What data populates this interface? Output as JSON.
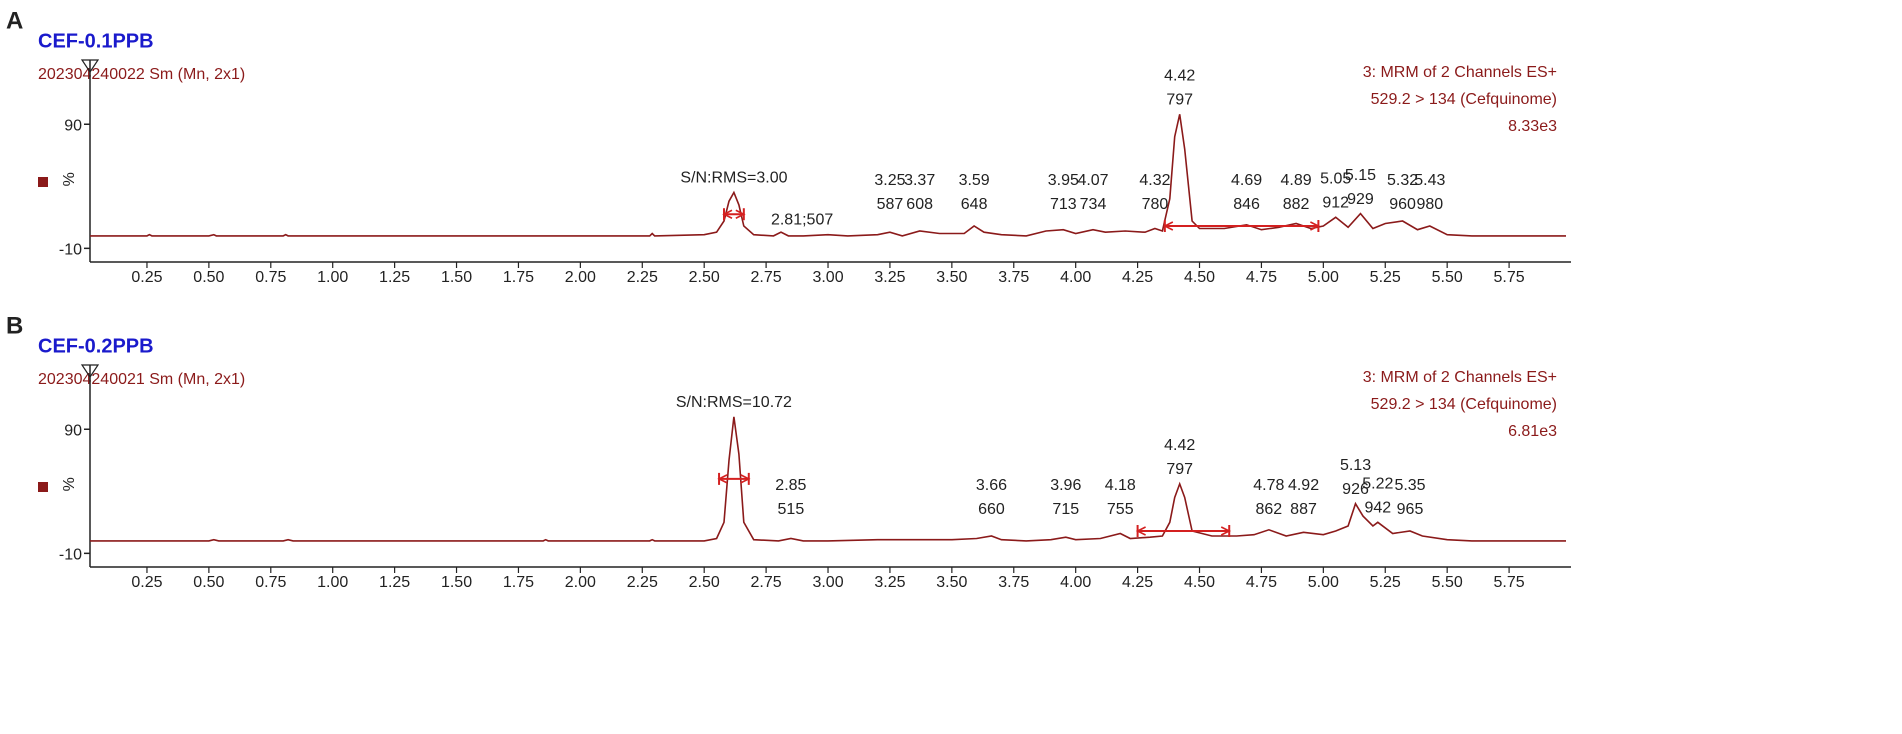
{
  "chart_data": [
    {
      "type": "line",
      "panel": "A",
      "title": "CEF-0.1PPB",
      "subtitle": "202304240022 Sm (Mn, 2x1)",
      "header_lines": [
        "3: MRM of 2 Channels ES+",
        "529.2 > 134 (Cefquinome)",
        "8.33e3"
      ],
      "y_label": "%",
      "color": "#8b1a1a",
      "range_color": "#d42020",
      "xlim": [
        0.02,
        6.0
      ],
      "ylim": [
        -21,
        145
      ],
      "xticks": [
        0.25,
        0.5,
        0.75,
        1.0,
        1.25,
        1.5,
        1.75,
        2.0,
        2.25,
        2.5,
        2.75,
        3.0,
        3.25,
        3.5,
        3.75,
        4.0,
        4.25,
        4.5,
        4.75,
        5.0,
        5.25,
        5.5,
        5.75
      ],
      "xtick_labels": [
        "0.25",
        "0.50",
        "0.75",
        "1.00",
        "1.25",
        "1.50",
        "1.75",
        "2.00",
        "2.25",
        "2.50",
        "2.75",
        "3.00",
        "3.25",
        "3.50",
        "3.75",
        "4.00",
        "4.25",
        "4.50",
        "4.75",
        "5.00",
        "5.25",
        "5.50",
        "5.75"
      ],
      "yticks": [
        -10,
        90
      ],
      "x": [
        0.02,
        0.25,
        0.26,
        0.27,
        0.5,
        0.52,
        0.53,
        0.8,
        0.81,
        0.82,
        1.5,
        2.0,
        2.28,
        2.29,
        2.3,
        2.5,
        2.55,
        2.58,
        2.6,
        2.62,
        2.64,
        2.66,
        2.7,
        2.78,
        2.81,
        2.84,
        2.9,
        3.0,
        3.08,
        3.2,
        3.25,
        3.3,
        3.37,
        3.45,
        3.55,
        3.59,
        3.63,
        3.7,
        3.8,
        3.88,
        3.95,
        4.0,
        4.07,
        4.12,
        4.2,
        4.28,
        4.32,
        4.35,
        4.38,
        4.4,
        4.42,
        4.44,
        4.47,
        4.5,
        4.6,
        4.69,
        4.75,
        4.82,
        4.89,
        4.95,
        5.0,
        5.05,
        5.1,
        5.15,
        5.2,
        5.25,
        5.32,
        5.38,
        5.43,
        5.5,
        5.6,
        5.75,
        5.98
      ],
      "values": [
        0,
        0,
        1,
        0,
        0,
        1,
        0,
        0,
        1,
        0,
        0,
        0,
        0,
        2,
        0,
        1,
        3,
        12,
        28,
        35,
        25,
        8,
        1,
        0,
        3,
        0,
        0,
        1,
        0,
        1,
        3,
        0,
        4,
        2,
        2,
        8,
        3,
        1,
        0,
        4,
        5,
        2,
        5,
        3,
        4,
        3,
        6,
        4,
        30,
        80,
        98,
        70,
        12,
        6,
        6,
        9,
        5,
        7,
        10,
        6,
        8,
        15,
        7,
        18,
        6,
        10,
        12,
        5,
        8,
        1,
        0,
        0,
        0
      ],
      "sn_label": "S/N:RMS=3.00",
      "signal_range": [
        2.58,
        2.66
      ],
      "noise_range": [
        4.36,
        4.98
      ],
      "peaks": [
        {
          "time": 2.81,
          "label": "2.81;507"
        },
        {
          "time": 3.25,
          "scan": 587
        },
        {
          "time": 3.37,
          "scan": 608
        },
        {
          "time": 3.59,
          "scan": 648
        },
        {
          "time": 3.95,
          "scan": 713
        },
        {
          "time": 4.07,
          "scan": 734
        },
        {
          "time": 4.32,
          "scan": 780
        },
        {
          "time": 4.42,
          "scan": 797
        },
        {
          "time": 4.69,
          "scan": 846
        },
        {
          "time": 4.89,
          "scan": 882
        },
        {
          "time": 5.05,
          "scan": 912
        },
        {
          "time": 5.15,
          "scan": 929
        },
        {
          "time": 5.32,
          "scan": 960
        },
        {
          "time": 5.43,
          "scan": 980
        }
      ]
    },
    {
      "type": "line",
      "panel": "B",
      "title": "CEF-0.2PPB",
      "subtitle": "202304240021 Sm (Mn, 2x1)",
      "header_lines": [
        "3: MRM of 2 Channels ES+",
        "529.2 > 134 (Cefquinome)",
        "6.81e3"
      ],
      "y_label": "%",
      "color": "#8b1a1a",
      "range_color": "#d42020",
      "xlim": [
        0.02,
        6.0
      ],
      "ylim": [
        -21,
        145
      ],
      "xticks": [
        0.25,
        0.5,
        0.75,
        1.0,
        1.25,
        1.5,
        1.75,
        2.0,
        2.25,
        2.5,
        2.75,
        3.0,
        3.25,
        3.5,
        3.75,
        4.0,
        4.25,
        4.5,
        4.75,
        5.0,
        5.25,
        5.5,
        5.75
      ],
      "xtick_labels": [
        "0.25",
        "0.50",
        "0.75",
        "1.00",
        "1.25",
        "1.50",
        "1.75",
        "2.00",
        "2.25",
        "2.50",
        "2.75",
        "3.00",
        "3.25",
        "3.50",
        "3.75",
        "4.00",
        "4.25",
        "4.50",
        "4.75",
        "5.00",
        "5.25",
        "5.50",
        "5.75"
      ],
      "yticks": [
        -10,
        90
      ],
      "x": [
        0.02,
        0.5,
        0.52,
        0.54,
        0.8,
        0.82,
        0.84,
        1.5,
        1.85,
        1.86,
        1.87,
        2.0,
        2.28,
        2.29,
        2.3,
        2.5,
        2.55,
        2.58,
        2.6,
        2.62,
        2.64,
        2.66,
        2.7,
        2.8,
        2.85,
        2.9,
        3.0,
        3.2,
        3.3,
        3.5,
        3.6,
        3.66,
        3.7,
        3.8,
        3.9,
        3.96,
        4.0,
        4.1,
        4.18,
        4.22,
        4.3,
        4.35,
        4.38,
        4.4,
        4.42,
        4.44,
        4.47,
        4.55,
        4.65,
        4.72,
        4.78,
        4.85,
        4.92,
        5.0,
        5.05,
        5.1,
        5.13,
        5.16,
        5.2,
        5.22,
        5.28,
        5.35,
        5.4,
        5.5,
        5.6,
        5.75,
        5.98
      ],
      "values": [
        0,
        0,
        1,
        0,
        0,
        1,
        0,
        0,
        0,
        1,
        0,
        0,
        0,
        1,
        0,
        0,
        2,
        15,
        65,
        100,
        70,
        15,
        1,
        0,
        2,
        0,
        0,
        1,
        1,
        1,
        2,
        4,
        1,
        0,
        1,
        3,
        1,
        2,
        6,
        2,
        3,
        4,
        15,
        35,
        46,
        35,
        8,
        4,
        4,
        5,
        9,
        4,
        7,
        5,
        8,
        12,
        30,
        20,
        12,
        15,
        6,
        8,
        4,
        1,
        0,
        0,
        0
      ],
      "sn_label": "S/N:RMS=10.72",
      "signal_range": [
        2.56,
        2.68
      ],
      "noise_range": [
        4.25,
        4.62
      ],
      "peaks": [
        {
          "time": 2.85,
          "scan": 515
        },
        {
          "time": 3.66,
          "scan": 660
        },
        {
          "time": 3.96,
          "scan": 715
        },
        {
          "time": 4.18,
          "scan": 755
        },
        {
          "time": 4.42,
          "scan": 797
        },
        {
          "time": 4.78,
          "scan": 862
        },
        {
          "time": 4.92,
          "scan": 887
        },
        {
          "time": 5.13,
          "scan": 926
        },
        {
          "time": 5.22,
          "scan": 942
        },
        {
          "time": 5.35,
          "scan": 965
        }
      ]
    }
  ]
}
